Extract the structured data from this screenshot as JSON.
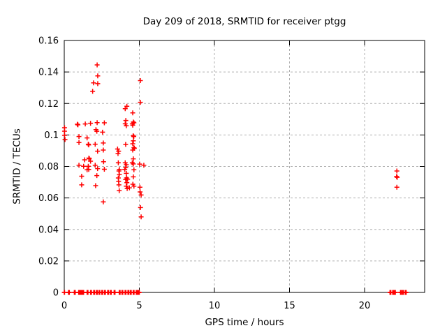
{
  "window": {
    "background": "#ffffff"
  },
  "chart_data": {
    "type": "scatter",
    "title": "Day 209 of 2018, SRMTID for receiver ptgg",
    "xlabel": "GPS time / hours",
    "ylabel": "SRMTID / TECUs",
    "xlim": [
      0,
      24
    ],
    "ylim": [
      0,
      0.16
    ],
    "x_ticks": {
      "values": [
        0,
        5,
        10,
        15,
        20
      ],
      "labels": [
        "0",
        "5",
        "10",
        "15",
        "20"
      ]
    },
    "y_ticks": {
      "values": [
        0,
        0.02,
        0.04,
        0.06,
        0.08,
        0.1,
        0.12,
        0.14,
        0.16
      ],
      "labels": [
        "0",
        "0.02",
        "0.04",
        "0.06",
        "0.08",
        "0.1",
        "0.12",
        "0.14",
        "0.16"
      ]
    },
    "grid": true,
    "legend": "none",
    "marker": {
      "shape": "plus",
      "color": "#ff0000",
      "size": 7,
      "stroke_width": 1.5
    },
    "grid_color": "#b0b0b0",
    "axis_color": "#000000",
    "series": [
      {
        "name": "SRMTID",
        "points": [
          [
            0.02,
            0.1046
          ],
          [
            0.02,
            0.1024
          ],
          [
            0.02,
            0.0998
          ],
          [
            0.05,
            0.0971
          ],
          [
            0.87,
            0.1068
          ],
          [
            0.91,
            0.1064
          ],
          [
            0.98,
            0.099
          ],
          [
            0.98,
            0.0952
          ],
          [
            0.98,
            0.0808
          ],
          [
            1.16,
            0.0738
          ],
          [
            1.16,
            0.0683
          ],
          [
            1.29,
            0.0801
          ],
          [
            1.36,
            0.0842
          ],
          [
            1.4,
            0.107
          ],
          [
            1.52,
            0.0981
          ],
          [
            1.52,
            0.0779
          ],
          [
            1.6,
            0.0941
          ],
          [
            1.63,
            0.0937
          ],
          [
            1.64,
            0.0853
          ],
          [
            1.67,
            0.0849
          ],
          [
            1.6,
            0.0801
          ],
          [
            1.63,
            0.0781
          ],
          [
            1.75,
            0.1074
          ],
          [
            1.75,
            0.0833
          ],
          [
            1.89,
            0.1277
          ],
          [
            1.95,
            0.1331
          ],
          [
            2.11,
            0.1034
          ],
          [
            2.17,
            0.1023
          ],
          [
            2.19,
            0.1445
          ],
          [
            2.23,
            0.1375
          ],
          [
            2.23,
            0.1326
          ],
          [
            2.19,
            0.1078
          ],
          [
            2.22,
            0.0897
          ],
          [
            2.22,
            0.0786
          ],
          [
            2.17,
            0.0742
          ],
          [
            2.06,
            0.0941
          ],
          [
            2.06,
            0.0808
          ],
          [
            2.09,
            0.0678
          ],
          [
            2.55,
            0.1018
          ],
          [
            2.6,
            0.0949
          ],
          [
            2.6,
            0.0904
          ],
          [
            2.62,
            0.083
          ],
          [
            2.67,
            0.1077
          ],
          [
            2.67,
            0.0782
          ],
          [
            2.6,
            0.0575
          ],
          [
            3.55,
            0.0911
          ],
          [
            3.62,
            0.0897
          ],
          [
            3.58,
            0.0882
          ],
          [
            3.6,
            0.0823
          ],
          [
            3.64,
            0.0771
          ],
          [
            3.67,
            0.0781
          ],
          [
            3.6,
            0.0727
          ],
          [
            3.67,
            0.0749
          ],
          [
            3.62,
            0.0705
          ],
          [
            3.64,
            0.0683
          ],
          [
            3.66,
            0.0646
          ],
          [
            4.03,
            0.0781
          ],
          [
            4.06,
            0.1167
          ],
          [
            4.17,
            0.1182
          ],
          [
            4.1,
            0.1092
          ],
          [
            4.06,
            0.1071
          ],
          [
            4.13,
            0.1059
          ],
          [
            4.09,
            0.094
          ],
          [
            4.06,
            0.0823
          ],
          [
            4.13,
            0.0811
          ],
          [
            4.09,
            0.0793
          ],
          [
            4.15,
            0.0727
          ],
          [
            4.22,
            0.0719
          ],
          [
            4.13,
            0.0756
          ],
          [
            4.09,
            0.0717
          ],
          [
            4.19,
            0.066
          ],
          [
            4.34,
            0.0664
          ],
          [
            4.17,
            0.0697
          ],
          [
            4.13,
            0.0675
          ],
          [
            4.56,
            0.114
          ],
          [
            4.6,
            0.1082
          ],
          [
            4.64,
            0.1077
          ],
          [
            4.53,
            0.1071
          ],
          [
            4.56,
            0.1062
          ],
          [
            4.59,
            0.0995
          ],
          [
            4.63,
            0.099
          ],
          [
            4.6,
            0.0963
          ],
          [
            4.56,
            0.0944
          ],
          [
            4.64,
            0.0919
          ],
          [
            4.67,
            0.0915
          ],
          [
            4.56,
            0.0904
          ],
          [
            4.6,
            0.0848
          ],
          [
            4.53,
            0.0823
          ],
          [
            4.6,
            0.0816
          ],
          [
            4.64,
            0.0779
          ],
          [
            4.6,
            0.0734
          ],
          [
            4.57,
            0.0687
          ],
          [
            4.64,
            0.0675
          ],
          [
            5.07,
            0.1345
          ],
          [
            5.07,
            0.1207
          ],
          [
            5.02,
            0.0815
          ],
          [
            5.3,
            0.0808
          ],
          [
            5.04,
            0.0668
          ],
          [
            5.05,
            0.0638
          ],
          [
            5.12,
            0.0619
          ],
          [
            5.08,
            0.0539
          ],
          [
            5.12,
            0.048
          ],
          [
            22.15,
            0.0771
          ],
          [
            22.13,
            0.0736
          ],
          [
            22.17,
            0.0731
          ],
          [
            22.15,
            0.0668
          ]
        ]
      }
    ],
    "zero_value_runs": [
      [
        0.0,
        0.02
      ],
      [
        0.28,
        0.34
      ],
      [
        0.67,
        0.73
      ],
      [
        0.96,
        1.06
      ],
      [
        1.09,
        1.17
      ],
      [
        1.21,
        1.29
      ],
      [
        1.52,
        1.58
      ],
      [
        1.75,
        1.81
      ],
      [
        1.96,
        2.02
      ],
      [
        2.14,
        2.2
      ],
      [
        2.31,
        2.37
      ],
      [
        2.5,
        2.56
      ],
      [
        2.68,
        2.74
      ],
      [
        2.89,
        2.95
      ],
      [
        3.07,
        3.13
      ],
      [
        3.32,
        3.38
      ],
      [
        3.66,
        3.72
      ],
      [
        3.84,
        3.9
      ],
      [
        4.05,
        4.11
      ],
      [
        4.24,
        4.3
      ],
      [
        4.4,
        4.46
      ],
      [
        4.59,
        4.65
      ],
      [
        4.79,
        4.89
      ],
      [
        4.94,
        5.0
      ],
      [
        21.69,
        21.75
      ],
      [
        21.87,
        21.93
      ],
      [
        21.99,
        22.05
      ],
      [
        22.39,
        22.45
      ],
      [
        22.53,
        22.59
      ],
      [
        22.71,
        22.77
      ]
    ]
  }
}
